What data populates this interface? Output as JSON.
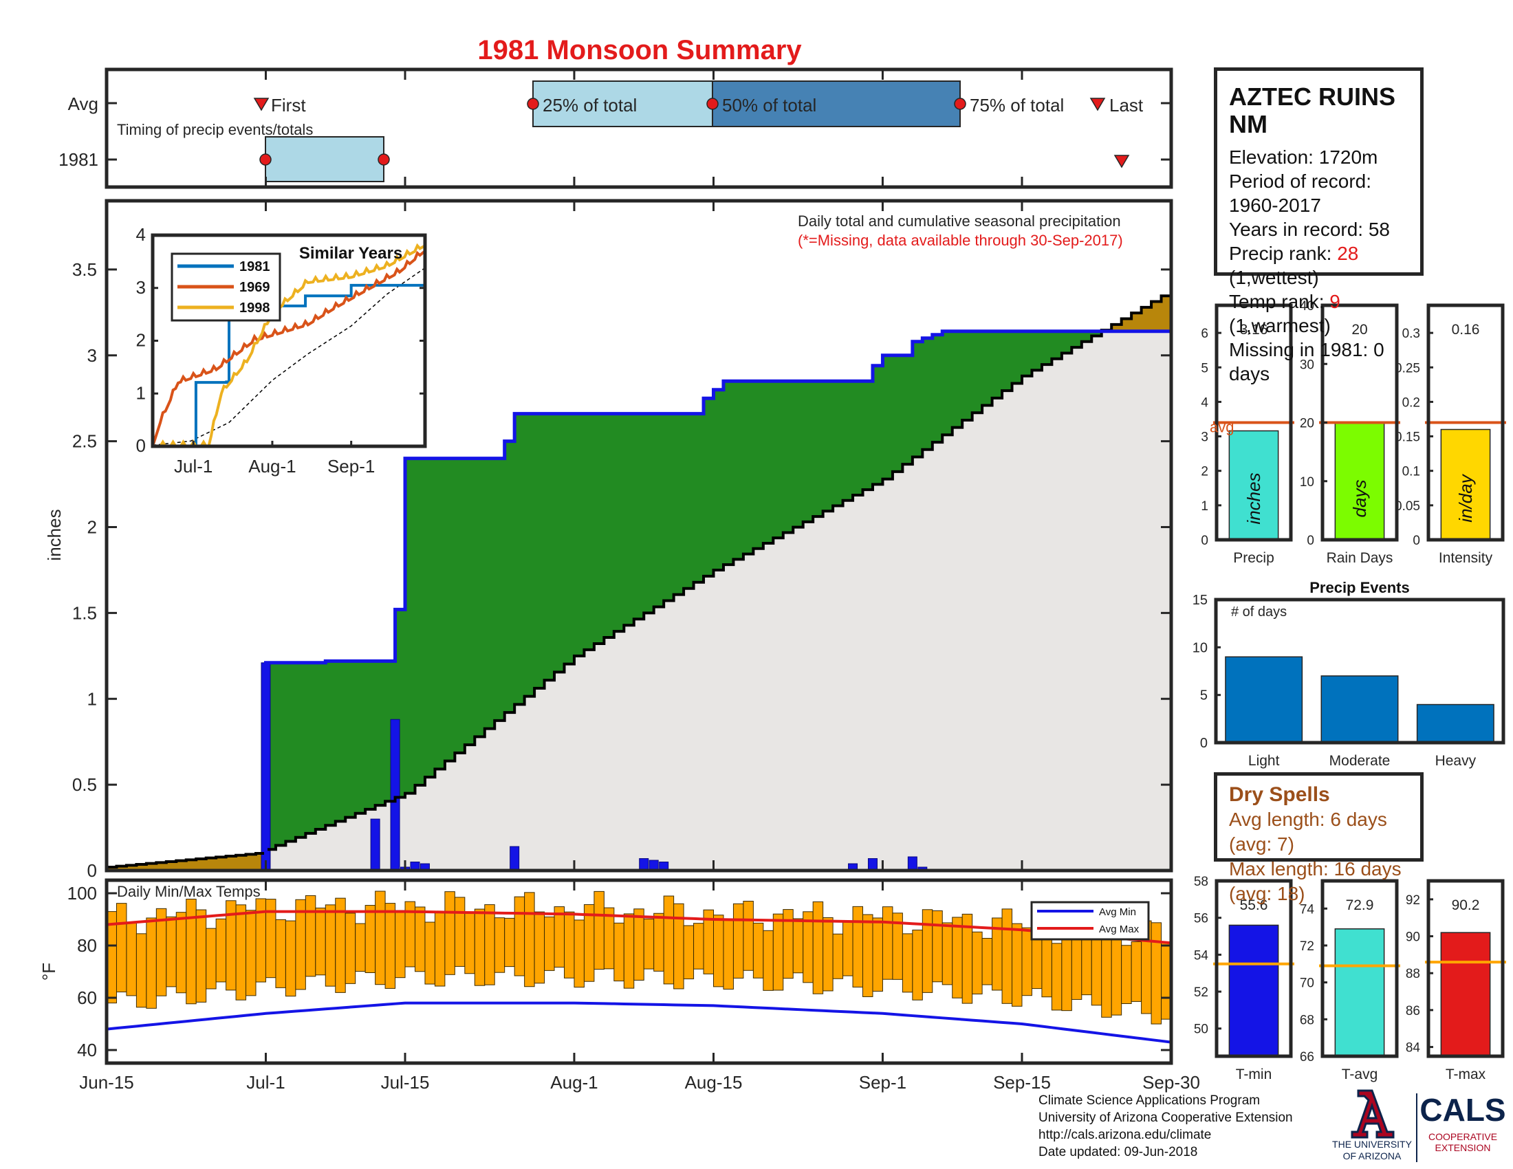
{
  "title": "1981 Monsoon Summary",
  "timing": {
    "row_labels": [
      "Avg",
      "1981"
    ],
    "caption": "Timing of precip events/totals",
    "first": "First",
    "p25": "25% of total",
    "p50": "50% of total",
    "p75": "75% of total",
    "last": "Last"
  },
  "station": {
    "name": "AZTEC RUINS NM",
    "elevation_label": "Elevation:",
    "elevation": "1720m",
    "period_label": "Period of record:",
    "period": "1960-2017",
    "years_label": "Years in record:",
    "years": "58",
    "precip_rank_label": "Precip rank:",
    "precip_rank": "28",
    "precip_rank_note": "(1,wettest)",
    "temp_rank_label": "Temp rank:",
    "temp_rank": "9",
    "temp_rank_note": "(1,warmest)",
    "missing_label": "Missing in 1981:",
    "missing": "0 days"
  },
  "main_chart": {
    "ylabel": "inches",
    "note1": "Daily total and cumulative seasonal precipitation",
    "note2": "(*=Missing, data available through 30-Sep-2017)",
    "yticks": [
      "0",
      "0.5",
      "1",
      "1.5",
      "2",
      "2.5",
      "3",
      "3.5"
    ],
    "xticks": [
      "Jun-15",
      "Jul-1",
      "Jul-15",
      "Aug-1",
      "Aug-15",
      "Sep-1",
      "Sep-15",
      "Sep-30"
    ]
  },
  "inset": {
    "title": "Similar Years",
    "legend": [
      "1981",
      "1969",
      "1998"
    ],
    "yticks": [
      "0",
      "1",
      "2",
      "3",
      "4"
    ],
    "xticks": [
      "Jul-1",
      "Aug-1",
      "Sep-1"
    ]
  },
  "temp_chart": {
    "ylabel": "°F",
    "title": "Daily Min/Max Temps",
    "legend_min": "Avg Min",
    "legend_max": "Avg Max",
    "yticks": [
      "40",
      "60",
      "80",
      "100"
    ]
  },
  "summary_bars": {
    "precip": {
      "label": "Precip",
      "value": "3.16",
      "unit": "inches",
      "avg_label": "avg"
    },
    "rain_days": {
      "label": "Rain Days",
      "value": "20",
      "unit": "days"
    },
    "intensity": {
      "label": "Intensity",
      "value": "0.16",
      "unit": "in/day"
    }
  },
  "events": {
    "title": "Precip Events",
    "ylabel": "# of days",
    "categories": [
      "Light",
      "Moderate",
      "Heavy"
    ],
    "values": [
      9,
      7,
      4
    ],
    "yticks": [
      "0",
      "5",
      "10",
      "15"
    ]
  },
  "dry_spells": {
    "title": "Dry Spells",
    "avg_line": "Avg length: 6 days (avg: 7)",
    "max_line": "Max length: 16 days (avg: 18)"
  },
  "temp_bars": {
    "tmin": {
      "label": "T-min",
      "value": "55.6"
    },
    "tavg": {
      "label": "T-avg",
      "value": "72.9"
    },
    "tmax": {
      "label": "T-max",
      "value": "90.2"
    }
  },
  "credits": {
    "line1": "Climate Science Applications Program",
    "line2": "University of Arizona Cooperative Extension",
    "line3": "http://cals.arizona.edu/climate",
    "line4": "Date updated: 09-Jun-2018",
    "ua1": "THE UNIVERSITY",
    "ua2": "OF ARIZONA",
    "cals": "CALS",
    "cals1": "COOPERATIVE",
    "cals2": "EXTENSION"
  },
  "colors": {
    "observed_cum": "#1414e6",
    "avg_cum": "#000000",
    "above_avg_fill": "#228b22",
    "below_avg_fill": "#b8860b",
    "climo_fill": "#e8e6e4",
    "temp_bars": "#ffa500",
    "title": "#e31b1b"
  },
  "chart_data": [
    {
      "type": "area",
      "title": "Daily total and cumulative seasonal precipitation",
      "ylabel": "inches",
      "ylim": [
        0,
        3.9
      ],
      "x_range": [
        "Jun-15",
        "Sep-30"
      ],
      "series": [
        {
          "name": "1981 cumulative",
          "x": [
            "Jun-15",
            "Jun-30",
            "Jul-1",
            "Jul-7",
            "Jul-8",
            "Jul-14",
            "Jul-15",
            "Jul-25",
            "Jul-26",
            "Aug-13",
            "Aug-14",
            "Aug-15",
            "Aug-16",
            "Aug-31",
            "Sep-1",
            "Sep-4",
            "Sep-5",
            "Sep-6",
            "Sep-7",
            "Sep-30"
          ],
          "values": [
            0,
            0,
            1.21,
            1.22,
            1.22,
            1.52,
            2.4,
            2.5,
            2.66,
            2.66,
            2.75,
            2.8,
            2.85,
            2.94,
            3.0,
            3.08,
            3.1,
            3.12,
            3.14,
            3.16
          ]
        },
        {
          "name": "Average cumulative",
          "x": [
            "Jun-15",
            "Jun-30",
            "Jul-15",
            "Aug-1",
            "Aug-15",
            "Sep-1",
            "Sep-15",
            "Sep-30"
          ],
          "values": [
            0.02,
            0.1,
            0.45,
            1.25,
            1.75,
            2.28,
            2.88,
            3.38
          ]
        },
        {
          "name": "Daily precip",
          "x": [
            "Jul-1",
            "Jul-12",
            "Jul-14",
            "Jul-15",
            "Jul-16",
            "Jul-17",
            "Jul-26",
            "Aug-8",
            "Aug-9",
            "Aug-10",
            "Aug-29",
            "Aug-31",
            "Sep-4",
            "Sep-5"
          ],
          "values": [
            1.21,
            0.3,
            0.88,
            0.02,
            0.05,
            0.04,
            0.14,
            0.07,
            0.06,
            0.05,
            0.04,
            0.07,
            0.08,
            0.02
          ]
        }
      ]
    },
    {
      "type": "line",
      "title": "Similar Years",
      "ylim": [
        0,
        4
      ],
      "x_range": [
        "Jun-15",
        "Sep-30"
      ],
      "series": [
        {
          "name": "1981",
          "x": [
            "Jun-15",
            "Jul-1",
            "Jul-2",
            "Jul-14",
            "Jul-15",
            "Jul-26",
            "Aug-14",
            "Sep-1",
            "Sep-30"
          ],
          "values": [
            0,
            0,
            1.21,
            1.22,
            2.4,
            2.66,
            2.85,
            3.05,
            3.16
          ]
        },
        {
          "name": "1969",
          "x": [
            "Jun-15",
            "Jun-18",
            "Jun-25",
            "Jul-10",
            "Jul-25",
            "Aug-15",
            "Aug-25",
            "Sep-5",
            "Sep-20",
            "Sep-30"
          ],
          "values": [
            0,
            0.45,
            1.2,
            1.45,
            2.0,
            2.3,
            2.6,
            2.9,
            3.3,
            3.7
          ]
        },
        {
          "name": "1998",
          "x": [
            "Jun-15",
            "Jul-7",
            "Jul-12",
            "Jul-22",
            "Aug-1",
            "Aug-15",
            "Sep-1",
            "Sep-15",
            "Sep-30"
          ],
          "values": [
            0,
            0,
            1.0,
            1.6,
            2.5,
            3.1,
            3.2,
            3.4,
            3.8
          ]
        }
      ]
    },
    {
      "type": "bar",
      "title": "Daily Min/Max Temps",
      "ylabel": "°F",
      "ylim": [
        35,
        105
      ],
      "series": [
        {
          "name": "Avg Max",
          "x": [
            "Jun-15",
            "Jul-1",
            "Jul-15",
            "Aug-1",
            "Aug-15",
            "Sep-1",
            "Sep-15",
            "Sep-30"
          ],
          "values": [
            88,
            93,
            93,
            92,
            90,
            89,
            86,
            81
          ]
        },
        {
          "name": "Avg Min",
          "x": [
            "Jun-15",
            "Jul-1",
            "Jul-15",
            "Aug-1",
            "Aug-15",
            "Sep-1",
            "Sep-15",
            "Sep-30"
          ],
          "values": [
            48,
            54,
            58,
            58,
            57,
            54,
            50,
            43
          ]
        }
      ]
    },
    {
      "type": "bar",
      "categories": [
        "Precip"
      ],
      "values": [
        3.16
      ],
      "ylim": [
        0,
        6.8
      ],
      "average": 3.4
    },
    {
      "type": "bar",
      "categories": [
        "Rain Days"
      ],
      "values": [
        20
      ],
      "ylim": [
        0,
        40
      ],
      "average": 20
    },
    {
      "type": "bar",
      "categories": [
        "Intensity"
      ],
      "values": [
        0.16
      ],
      "ylim": [
        0,
        0.34
      ],
      "average": 0.17
    },
    {
      "type": "bar",
      "title": "Precip Events",
      "categories": [
        "Light",
        "Moderate",
        "Heavy"
      ],
      "values": [
        9,
        7,
        4
      ],
      "ylim": [
        0,
        15
      ]
    },
    {
      "type": "bar",
      "categories": [
        "T-min"
      ],
      "values": [
        55.6
      ],
      "ylim": [
        48.5,
        58
      ],
      "average": 53.5
    },
    {
      "type": "bar",
      "categories": [
        "T-avg"
      ],
      "values": [
        72.9
      ],
      "ylim": [
        66,
        75.5
      ],
      "average": 70.9
    },
    {
      "type": "bar",
      "categories": [
        "T-max"
      ],
      "values": [
        90.2
      ],
      "ylim": [
        83.5,
        93
      ],
      "average": 88.6
    }
  ]
}
